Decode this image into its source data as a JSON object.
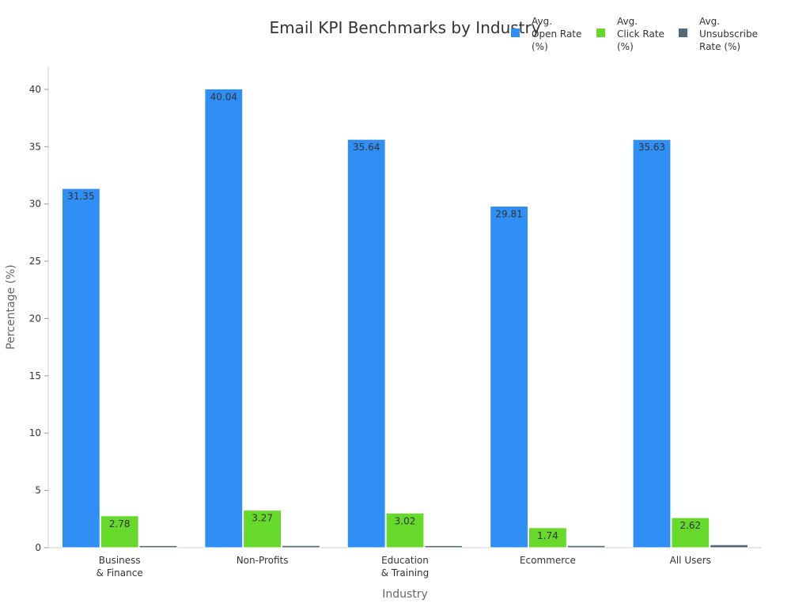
{
  "chart_data": {
    "type": "bar",
    "title": "Email KPI Benchmarks by Industry",
    "xlabel": "Industry",
    "ylabel": "Percentage (%)",
    "ylim": [
      0,
      42
    ],
    "yticks": [
      0,
      5,
      10,
      15,
      20,
      25,
      30,
      35,
      40
    ],
    "grid": false,
    "legend_position": "top-right",
    "categories": [
      [
        "Business",
        "& Finance"
      ],
      [
        "Non-Profits"
      ],
      [
        "Education",
        "& Training"
      ],
      [
        "Ecommerce"
      ],
      [
        "All Users"
      ]
    ],
    "series": [
      {
        "name": [
          "Avg.",
          "Open Rate",
          "(%)"
        ],
        "color": "#2f8ff5",
        "values": [
          31.35,
          40.04,
          35.64,
          29.81,
          35.63
        ],
        "labels": [
          "31.35",
          "40.04",
          "35.64",
          "29.81",
          "35.63"
        ]
      },
      {
        "name": [
          "Avg.",
          "Click Rate",
          "(%)"
        ],
        "color": "#66d92b",
        "values": [
          2.78,
          3.27,
          3.02,
          1.74,
          2.62
        ],
        "labels": [
          "2.78",
          "3.27",
          "3.02",
          "1.74",
          "2.62"
        ]
      },
      {
        "name": [
          "Avg.",
          "Unsubscribe",
          "Rate (%)"
        ],
        "color": "#566b78",
        "values": [
          0.18,
          0.19,
          0.18,
          0.19,
          0.26
        ],
        "labels": [
          "",
          "",
          "",
          "",
          ""
        ]
      }
    ]
  }
}
